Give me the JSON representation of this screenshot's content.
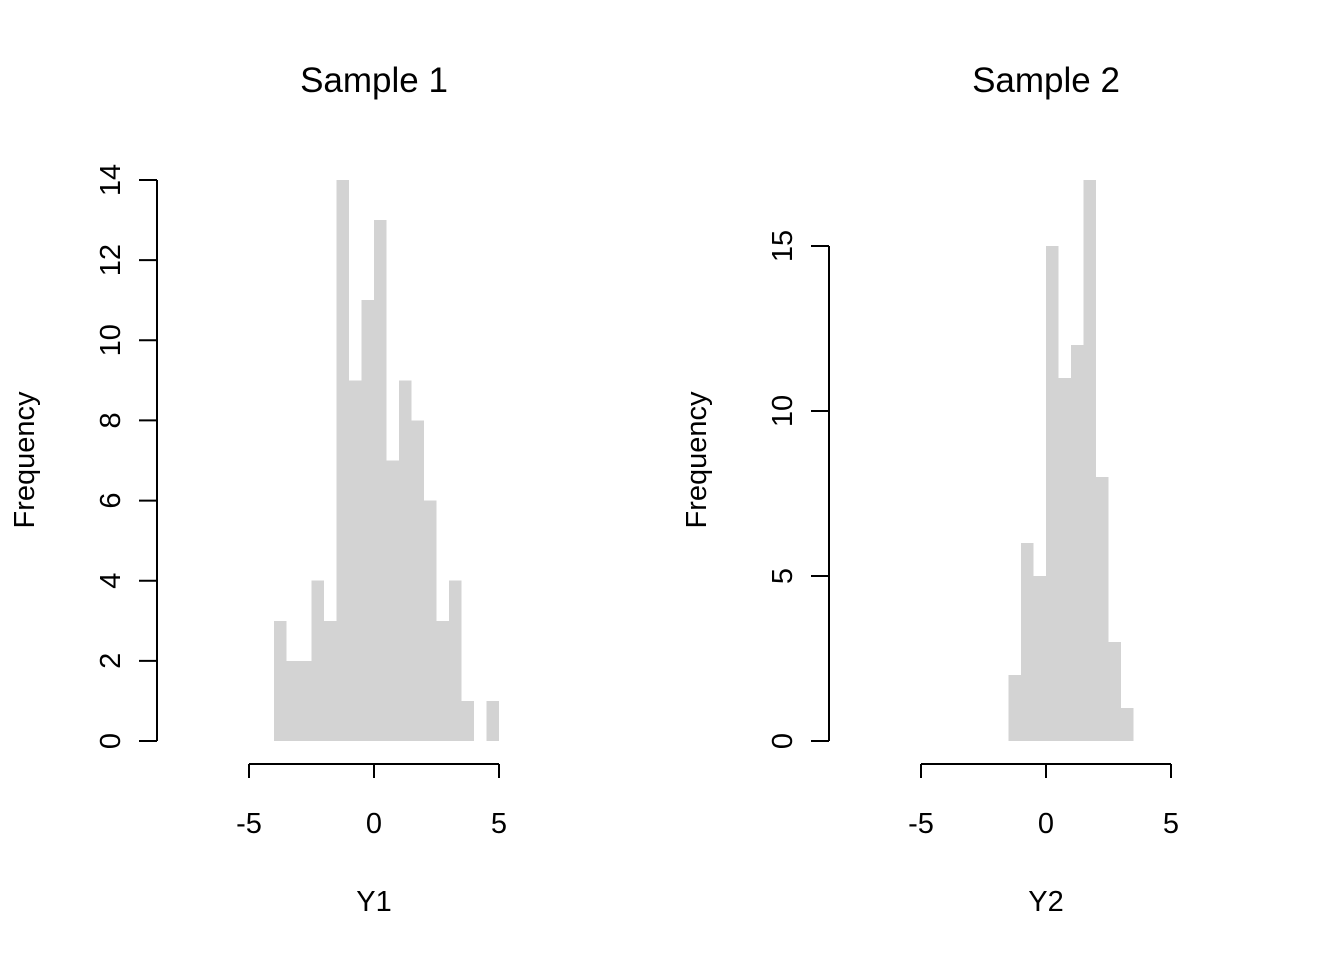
{
  "chart_data": [
    {
      "type": "bar",
      "subtype": "histogram",
      "title": "Sample 1",
      "xlabel": "Y1",
      "ylabel": "Frequency",
      "bar_color": "#d3d3d3",
      "bin_width": 0.5,
      "bins": [
        {
          "x0": -4.0,
          "x1": -3.5,
          "count": 3
        },
        {
          "x0": -3.5,
          "x1": -3.0,
          "count": 2
        },
        {
          "x0": -3.0,
          "x1": -2.5,
          "count": 2
        },
        {
          "x0": -2.5,
          "x1": -2.0,
          "count": 4
        },
        {
          "x0": -2.0,
          "x1": -1.5,
          "count": 3
        },
        {
          "x0": -1.5,
          "x1": -1.0,
          "count": 14
        },
        {
          "x0": -1.0,
          "x1": -0.5,
          "count": 9
        },
        {
          "x0": -0.5,
          "x1": 0.0,
          "count": 11
        },
        {
          "x0": 0.0,
          "x1": 0.5,
          "count": 13
        },
        {
          "x0": 0.5,
          "x1": 1.0,
          "count": 7
        },
        {
          "x0": 1.0,
          "x1": 1.5,
          "count": 9
        },
        {
          "x0": 1.5,
          "x1": 2.0,
          "count": 8
        },
        {
          "x0": 2.0,
          "x1": 2.5,
          "count": 6
        },
        {
          "x0": 2.5,
          "x1": 3.0,
          "count": 3
        },
        {
          "x0": 3.0,
          "x1": 3.5,
          "count": 4
        },
        {
          "x0": 3.5,
          "x1": 4.0,
          "count": 1
        },
        {
          "x0": 4.0,
          "x1": 4.5,
          "count": 0
        },
        {
          "x0": 4.5,
          "x1": 5.0,
          "count": 1
        }
      ],
      "xlim": [
        -5,
        5
      ],
      "ylim": [
        0,
        14
      ],
      "xticks": [
        -5,
        0,
        5
      ],
      "xtick_labels": [
        "-5",
        "0",
        "5"
      ],
      "yticks": [
        0,
        2,
        4,
        6,
        8,
        10,
        12,
        14
      ],
      "ytick_labels": [
        "0",
        "2",
        "4",
        "6",
        "8",
        "10",
        "12",
        "14"
      ],
      "grid": false
    },
    {
      "type": "bar",
      "subtype": "histogram",
      "title": "Sample 2",
      "xlabel": "Y2",
      "ylabel": "Frequency",
      "bar_color": "#d3d3d3",
      "bin_width": 0.5,
      "bins": [
        {
          "x0": -1.5,
          "x1": -1.0,
          "count": 2
        },
        {
          "x0": -1.0,
          "x1": -0.5,
          "count": 6
        },
        {
          "x0": -0.5,
          "x1": 0.0,
          "count": 5
        },
        {
          "x0": 0.0,
          "x1": 0.5,
          "count": 15
        },
        {
          "x0": 0.5,
          "x1": 1.0,
          "count": 11
        },
        {
          "x0": 1.0,
          "x1": 1.5,
          "count": 12
        },
        {
          "x0": 1.5,
          "x1": 2.0,
          "count": 17
        },
        {
          "x0": 2.0,
          "x1": 2.5,
          "count": 8
        },
        {
          "x0": 2.5,
          "x1": 3.0,
          "count": 3
        },
        {
          "x0": 3.0,
          "x1": 3.5,
          "count": 1
        }
      ],
      "xlim": [
        -5,
        5
      ],
      "ylim": [
        0,
        17
      ],
      "xticks": [
        -5,
        0,
        5
      ],
      "xtick_labels": [
        "-5",
        "0",
        "5"
      ],
      "yticks": [
        0,
        5,
        10,
        15
      ],
      "ytick_labels": [
        "0",
        "5",
        "10",
        "15"
      ],
      "grid": false
    }
  ]
}
